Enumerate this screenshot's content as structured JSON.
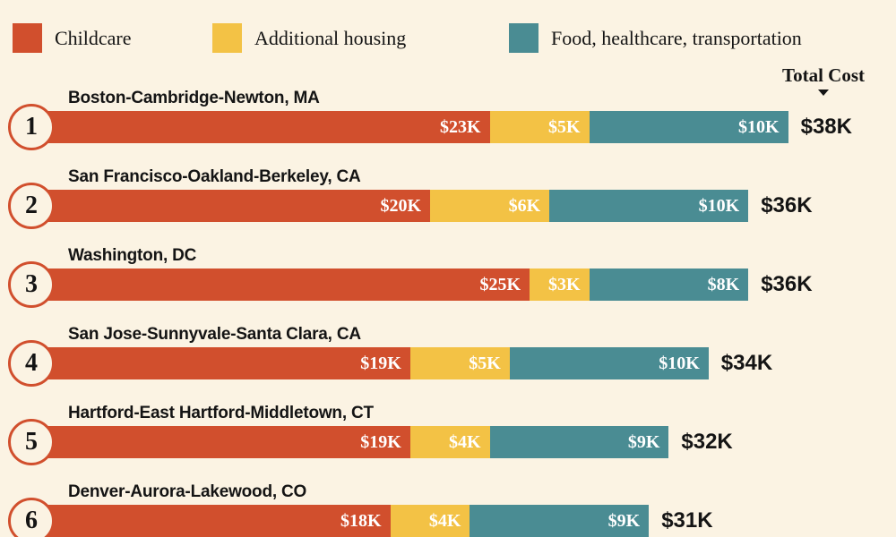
{
  "header": {
    "total_cost_label": "Total Cost"
  },
  "colors": {
    "background": "#fbf3e3",
    "childcare": "#d14f2d",
    "additional_housing": "#f3c245",
    "food_healthcare_transportation": "#4a8c93",
    "text": "#141414",
    "bar_value_text": "#ffffff"
  },
  "legend": {
    "items": [
      {
        "label": "Childcare",
        "color": "#d14f2d"
      },
      {
        "label": "Additional housing",
        "color": "#f3c245"
      },
      {
        "label": "Food, healthcare, transportation",
        "color": "#4a8c93"
      }
    ]
  },
  "chart_data": {
    "type": "bar",
    "orientation": "horizontal",
    "stacked": true,
    "grid": false,
    "legend_position": "top",
    "value_unit": "USD thousands",
    "categories": [
      "Boston-Cambridge-Newton, MA",
      "San Francisco-Oakland-Berkeley, CA",
      "Washington, DC",
      "San Jose-Sunnyvale-Santa Clara, CA",
      "Hartford-East Hartford-Middletown, CT",
      "Denver-Aurora-Lakewood, CO"
    ],
    "ranks": [
      "1",
      "2",
      "3",
      "4",
      "5",
      "6"
    ],
    "series": [
      {
        "name": "Childcare",
        "values": [
          23,
          20,
          25,
          19,
          19,
          18
        ]
      },
      {
        "name": "Additional housing",
        "values": [
          5,
          6,
          3,
          5,
          4,
          4
        ]
      },
      {
        "name": "Food, healthcare, transportation",
        "values": [
          10,
          10,
          8,
          10,
          9,
          9
        ]
      }
    ],
    "segment_labels": [
      [
        "$23K",
        "$5K",
        "$10K"
      ],
      [
        "$20K",
        "$6K",
        "$10K"
      ],
      [
        "$25K",
        "$3K",
        "$8K"
      ],
      [
        "$19K",
        "$5K",
        "$10K"
      ],
      [
        "$19K",
        "$4K",
        "$9K"
      ],
      [
        "$18K",
        "$4K",
        "$9K"
      ]
    ],
    "totals": [
      38,
      36,
      36,
      34,
      32,
      31
    ],
    "total_labels": [
      "$38K",
      "$36K",
      "$36K",
      "$34K",
      "$32K",
      "$31K"
    ]
  }
}
